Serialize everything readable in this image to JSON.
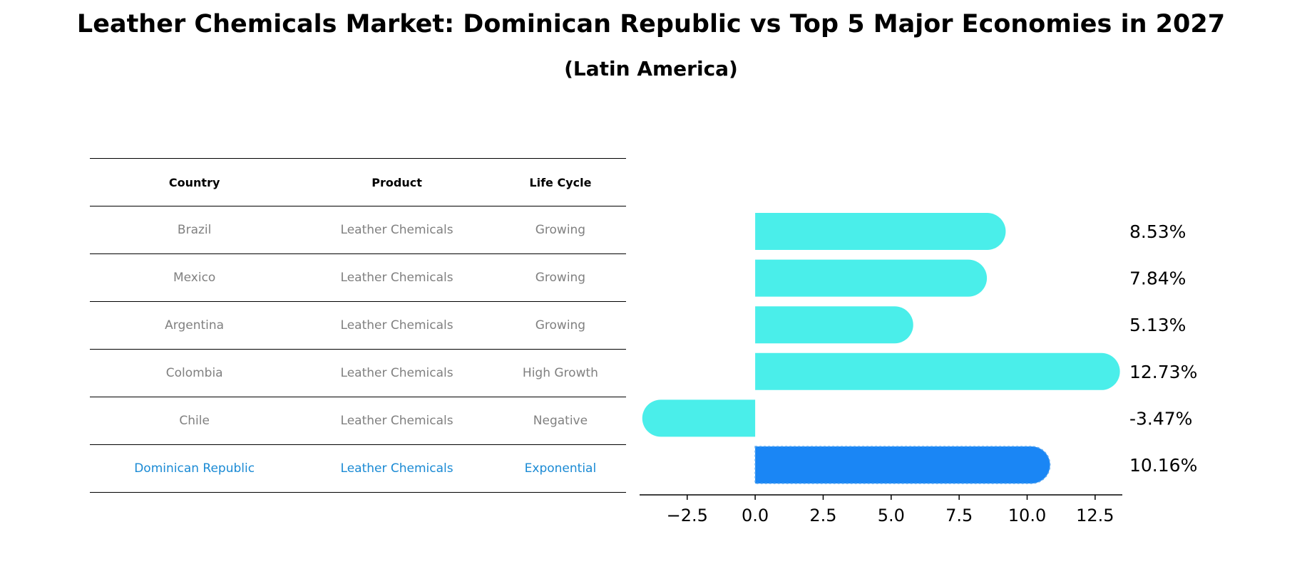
{
  "title": "Leather Chemicals Market: Dominican Republic vs Top 5 Major Economies in 2027",
  "subtitle": "(Latin America)",
  "table": {
    "headers": [
      "Country",
      "Product",
      "Life Cycle"
    ],
    "rows": [
      [
        "Brazil",
        "Leather Chemicals",
        "Growing"
      ],
      [
        "Mexico",
        "Leather Chemicals",
        "Growing"
      ],
      [
        "Argentina",
        "Leather Chemicals",
        "Growing"
      ],
      [
        "Colombia",
        "Leather Chemicals",
        "High Growth"
      ],
      [
        "Chile",
        "Leather Chemicals",
        "Negative"
      ],
      [
        "Dominican Republic",
        "Leather Chemicals",
        "Exponential"
      ]
    ],
    "highlight_row": 5,
    "highlight_color": "#1a8ad4",
    "text_color": "#808080"
  },
  "chart_data": {
    "type": "bar",
    "orientation": "horizontal",
    "categories": [
      "Brazil",
      "Mexico",
      "Argentina",
      "Colombia",
      "Chile",
      "Dominican Republic"
    ],
    "values": [
      8.53,
      7.84,
      5.13,
      12.73,
      -3.47,
      10.16
    ],
    "value_labels": [
      "8.53%",
      "7.84%",
      "5.13%",
      "12.73%",
      "-3.47%",
      "10.16%"
    ],
    "xlim": [
      -4.25,
      13.5
    ],
    "xticks": [
      -2.5,
      0.0,
      2.5,
      5.0,
      7.5,
      10.0,
      12.5
    ],
    "xtick_labels": [
      "−2.5",
      "0.0",
      "2.5",
      "5.0",
      "7.5",
      "10.0",
      "12.5"
    ],
    "bar_color": "#4aeeea",
    "highlight_color": "#1a86f5",
    "highlight_index": 5,
    "grid": false,
    "xlabel": "",
    "ylabel": ""
  }
}
